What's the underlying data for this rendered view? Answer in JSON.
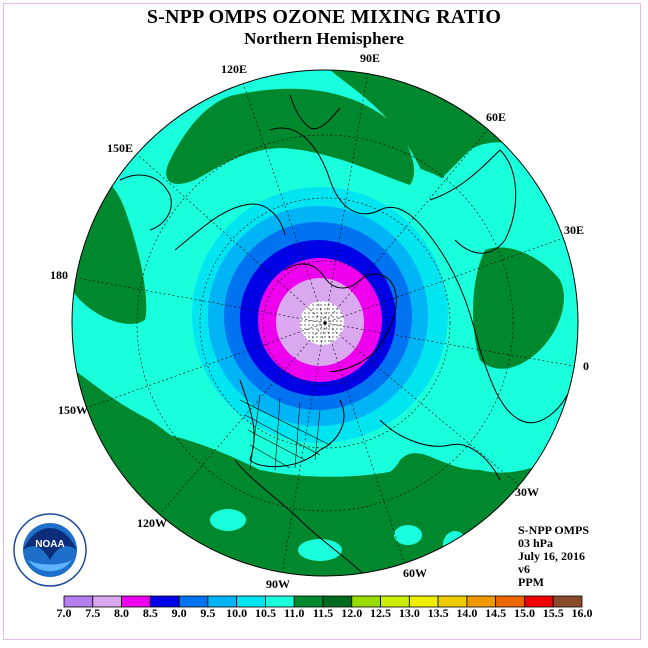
{
  "title": "S-NPP OMPS OZONE MIXING RATIO",
  "subtitle": "Northern Hemisphere",
  "logo_text": "NOAA",
  "longitude_labels": [
    "90E",
    "60E",
    "30E",
    "0",
    "30W",
    "60W",
    "90W",
    "120W",
    "150W",
    "180",
    "150E",
    "120E"
  ],
  "info": [
    "S-NPP OMPS",
    "03 hPa",
    "July 16, 2016",
    "v6",
    "PPM"
  ],
  "color_scale": {
    "ticks": [
      "7.0",
      "7.5",
      "8.0",
      "8.5",
      "9.0",
      "9.5",
      "10.0",
      "10.5",
      "11.0",
      "11.5",
      "12.0",
      "12.5",
      "13.0",
      "13.5",
      "14.0",
      "14.5",
      "15.0",
      "15.5",
      "16.0"
    ],
    "colors": [
      "#b57fee",
      "#d9a8ee",
      "#ee00ee",
      "#0000e6",
      "#0074f0",
      "#00b4f5",
      "#00e5f0",
      "#1affdc",
      "#00882e",
      "#006a1e",
      "#99dd00",
      "#ccee00",
      "#eeee00",
      "#eecc00",
      "#ee9900",
      "#ee6600",
      "#ee0000",
      "#8b4a2b"
    ]
  }
}
